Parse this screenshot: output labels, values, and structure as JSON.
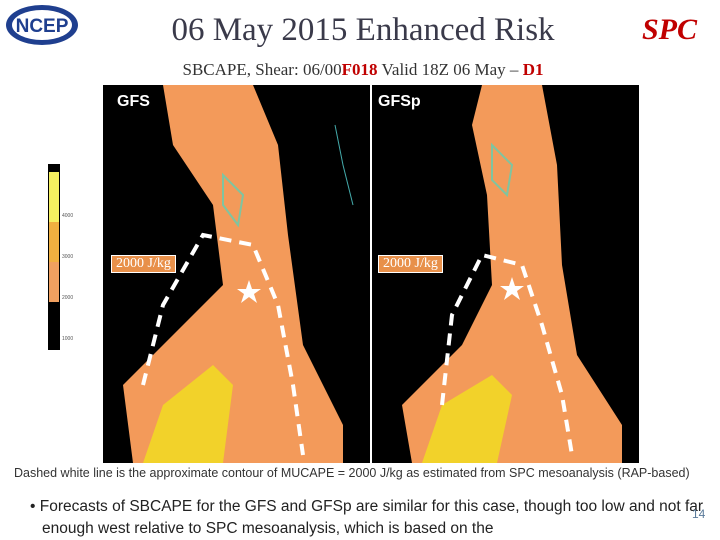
{
  "header": {
    "title": "06 May 2015 Enhanced Risk",
    "subtitle": [
      "SBCAPE, Shear: 06/00",
      "F018",
      " Valid 18Z 06 May – ",
      "D1"
    ]
  },
  "logos": {
    "left": "NCEP",
    "right": "SPC"
  },
  "legend": {
    "ticks": [
      "4000",
      "3000",
      "2000",
      "1000"
    ]
  },
  "panels": [
    {
      "label": "GFS",
      "contour_label": "2000 J/kg"
    },
    {
      "label": "GFSp",
      "contour_label": "2000 J/kg"
    }
  ],
  "caption": "Dashed white line is the approximate contour of MUCAPE = 2000 J/kg as estimated from SPC mesoanalysis (RAP-based)",
  "bullet": "Forecasts of SBCAPE for the GFS and GFSp are similar for this case, though too low and not far enough west relative to SPC mesoanalysis, which is based on the",
  "page_number": "14"
}
